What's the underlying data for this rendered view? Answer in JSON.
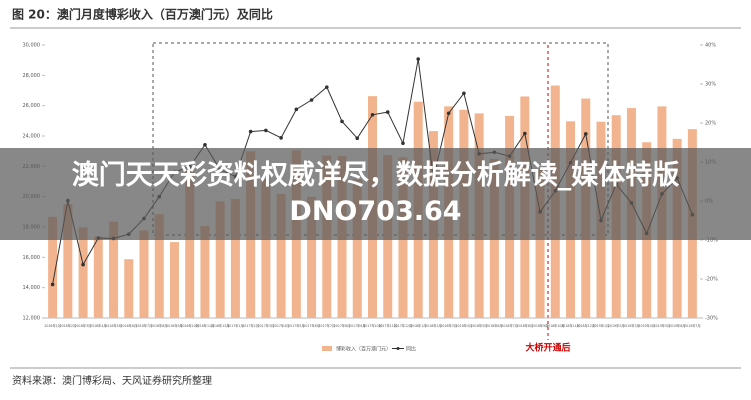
{
  "chart_data": {
    "type": "bar_line",
    "title": "图 20：澳门月度博彩收入（百万澳门元）及同比",
    "source": "资料来源：澳门博彩局、天风证券研究所整理",
    "annotation": "大桥开通后",
    "categories": [
      "2016年1月",
      "2016年2月",
      "2016年3月",
      "2016年4月",
      "2016年5月",
      "2016年6月",
      "2016年7月",
      "2016年8月",
      "2016年9月",
      "2016年10月",
      "2016年11月",
      "2016年12月",
      "2017年1月",
      "2017年2月",
      "2017年3月",
      "2017年4月",
      "2017年5月",
      "2017年6月",
      "2017年7月",
      "2017年8月",
      "2017年9月",
      "2017年10月",
      "2017年11月",
      "2017年12月",
      "2018年1月",
      "2018年2月",
      "2018年3月",
      "2018年4月",
      "2018年5月",
      "2018年6月",
      "2018年7月",
      "2018年8月",
      "2018年9月",
      "2018年10月",
      "2018年11月",
      "2018年12月",
      "2019年1月",
      "2019年2月",
      "2019年3月",
      "2019年4月",
      "2019年5月",
      "2019年6月",
      "2019年7月"
    ],
    "series": [
      {
        "name": "博彩收入（百万澳门元）",
        "color": "#f2b48f",
        "axis": "y",
        "values": [
          18671,
          19508,
          17982,
          17364,
          18350,
          15878,
          17778,
          18836,
          17006,
          21783,
          18062,
          19688,
          19855,
          22988,
          21181,
          20180,
          23047,
          19990,
          22706,
          22692,
          21140,
          26627,
          22739,
          22599,
          26260,
          24324,
          25954,
          25728,
          25492,
          22490,
          25327,
          26607,
          21831,
          27328,
          24969,
          26469,
          24942,
          25370,
          25840,
          23588,
          25952,
          23812,
          24453
        ]
      },
      {
        "name": "同比",
        "color": "#333333",
        "axis": "y2",
        "values": [
          -21.4,
          0.1,
          -16.3,
          -9.5,
          -9.6,
          -8.5,
          -4.5,
          1.1,
          7.4,
          8.8,
          14.4,
          8.0,
          6.3,
          17.8,
          18.1,
          16.2,
          23.5,
          25.9,
          29.2,
          20.4,
          16.1,
          22.1,
          22.8,
          14.8,
          36.4,
          5.8,
          22.5,
          27.6,
          12.1,
          12.5,
          11.5,
          17.3,
          -2.8,
          2.6,
          9.8,
          17.2,
          -5.0,
          4.3,
          -0.5,
          -8.3,
          1.8,
          5.9,
          -3.5
        ]
      }
    ],
    "ylim": [
      12000,
      30000
    ],
    "yticks": [
      {
        "value": 12000,
        "label": "12,000"
      },
      {
        "value": 14000,
        "label": "14,000"
      },
      {
        "value": 16000,
        "label": "16,000"
      },
      {
        "value": 18000,
        "label": "18,000"
      },
      {
        "value": 20000,
        "label": "20,000"
      },
      {
        "value": 22000,
        "label": "22,000"
      },
      {
        "value": 24000,
        "label": "24,000"
      },
      {
        "value": 26000,
        "label": "26,000"
      },
      {
        "value": 28000,
        "label": "28,000"
      },
      {
        "value": 30000,
        "label": "30,000"
      }
    ],
    "y2lim": [
      -30,
      40
    ],
    "y2ticks": [
      {
        "value": -30,
        "label": "-30%"
      },
      {
        "value": -20,
        "label": "-20%"
      },
      {
        "value": -10,
        "label": "-10%"
      },
      {
        "value": 0,
        "label": "0%"
      },
      {
        "value": 10,
        "label": "10%"
      },
      {
        "value": 20,
        "label": "20%"
      },
      {
        "value": 30,
        "label": "30%"
      },
      {
        "value": 40,
        "label": "40%"
      }
    ],
    "grid": false,
    "legend": "bottom"
  },
  "overlay_text": "澳门天天彩资料权威详尽，数据分析解读_媒体特版DNO703.64"
}
